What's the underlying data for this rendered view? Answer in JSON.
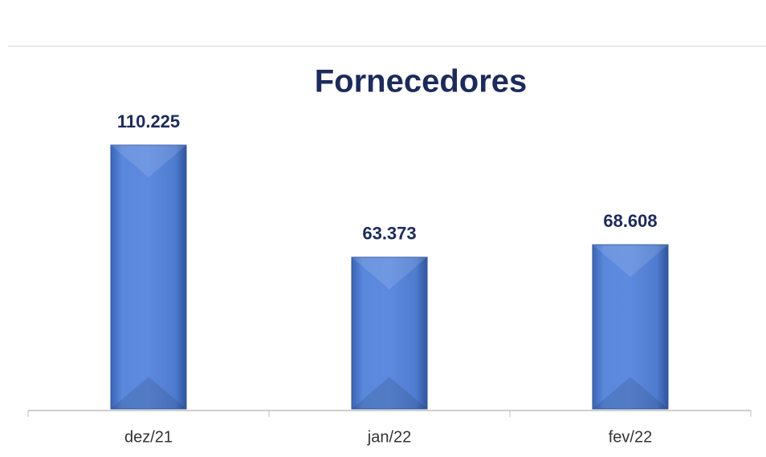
{
  "chart_data": {
    "type": "bar",
    "title": "Fornecedores",
    "categories": [
      "dez/21",
      "jan/22",
      "fev/22"
    ],
    "values": [
      110225,
      63373,
      68608
    ],
    "value_labels": [
      "110.225",
      "63.373",
      "68.608"
    ],
    "color": "#4f7fd6"
  }
}
